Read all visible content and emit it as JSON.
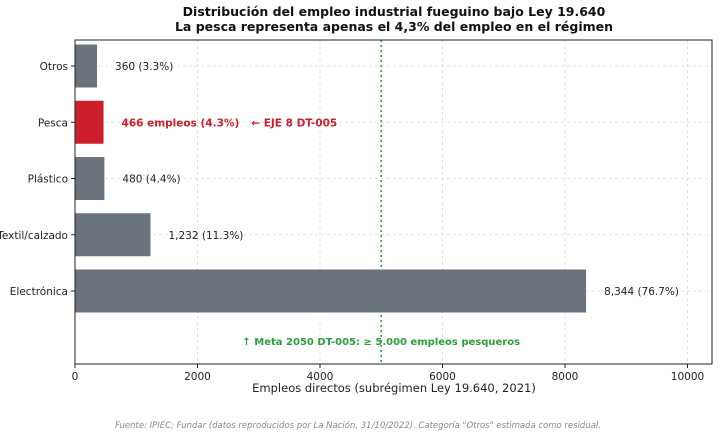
{
  "chart_data": {
    "type": "bar",
    "orientation": "horizontal",
    "title": "Distribución del empleo industrial fueguino bajo Ley 19.640",
    "subtitle": "La pesca representa apenas el 4,3% del empleo en el régimen",
    "xlabel": "Empleos directos (subrégimen Ley 19.640, 2021)",
    "ylabel": "",
    "xlim": [
      0,
      10400
    ],
    "xticks": [
      0,
      2000,
      4000,
      6000,
      8000,
      10000
    ],
    "grid": true,
    "categories": [
      "Electrónica",
      "Textil/calzado",
      "Plástico",
      "Pesca",
      "Otros"
    ],
    "values": [
      8344,
      1232,
      480,
      466,
      360
    ],
    "value_labels": [
      "8,344 (76.7%)",
      "1,232 (11.3%)",
      "480 (4.4%)",
      "466 empleos (4.3%)",
      "360 (3.3%)"
    ],
    "highlight_index": 3,
    "highlight_note": "← EJE 8 DT-005",
    "target_line": {
      "value": 5000,
      "label": "↑ Meta 2050 DT-005: ≥ 5.000 empleos pesqueros"
    },
    "colors": {
      "default_bar": "#6b737c",
      "highlight_bar": "#cc1f2b",
      "highlight_text": "#cc1f2b",
      "target": "#2e9e3e"
    }
  },
  "source_note": "Fuente: IPIEC; Fundar (datos reproducidos por La Nación, 31/10/2022). Categoría \"Otros\" estimada como residual."
}
